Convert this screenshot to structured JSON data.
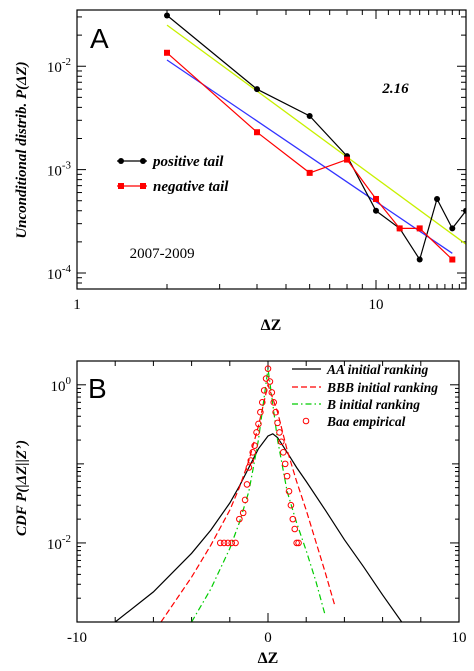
{
  "chart_data": [
    {
      "panel_label": "A",
      "type": "line",
      "xscale": "log",
      "yscale": "log",
      "xlim": [
        1,
        20
      ],
      "ylim": [
        7e-05,
        0.035
      ],
      "xlabel": "ΔZ",
      "ylabel": "Unconditional distrib. P(ΔZ)",
      "x_ticks": [
        {
          "value": 1,
          "label": "1"
        },
        {
          "value": 10,
          "label": "10"
        }
      ],
      "y_ticks": [
        {
          "value": 0.0001,
          "base": "10",
          "exp": "-4"
        },
        {
          "value": 0.001,
          "base": "10",
          "exp": "-3"
        },
        {
          "value": 0.01,
          "base": "10",
          "exp": "-2"
        }
      ],
      "legend_position": "center-left",
      "annotations": [
        {
          "text": "2.16",
          "x": 10.5,
          "y": 0.0055,
          "italic": true,
          "bold": true
        },
        {
          "text": "2007-2009",
          "x": 1.5,
          "y": 0.00014,
          "italic": false,
          "bold": false
        }
      ],
      "series": [
        {
          "name": "positive tail",
          "color": "#000000",
          "marker": "circle",
          "x": [
            2,
            4,
            6,
            8,
            10,
            12,
            14,
            16,
            18,
            20
          ],
          "y": [
            0.031,
            0.006,
            0.0033,
            0.00135,
            0.0004,
            0.00027,
            0.000135,
            0.00052,
            0.00027,
            0.0004
          ]
        },
        {
          "name": "negative tail",
          "color": "#ff0000",
          "marker": "square",
          "x": [
            2,
            4,
            6,
            8,
            10,
            12,
            14,
            18
          ],
          "y": [
            0.0135,
            0.0023,
            0.00093,
            0.00125,
            0.00052,
            0.00027,
            0.00027,
            0.000135
          ]
        }
      ],
      "fit_lines": [
        {
          "color": "#3333ff",
          "x": [
            2,
            18
          ],
          "y": [
            0.0115,
            0.000155
          ]
        },
        {
          "color": "#c8f000",
          "x": [
            2,
            20
          ],
          "y": [
            0.025,
            0.00019
          ]
        }
      ]
    },
    {
      "panel_label": "B",
      "type": "line",
      "yscale": "log",
      "xlim": [
        -10,
        10
      ],
      "ylim": [
        0.001,
        2
      ],
      "xlabel": "ΔZ",
      "ylabel": "CDF P(|ΔZ||Z’)",
      "x_ticks": [
        {
          "value": -10,
          "label": "-10"
        },
        {
          "value": 0,
          "label": "0"
        },
        {
          "value": 10,
          "label": "10"
        }
      ],
      "y_ticks": [
        {
          "value": 0.01,
          "base": "10",
          "exp": "-2"
        },
        {
          "value": 1,
          "base": "10",
          "exp": "0"
        }
      ],
      "legend_position": "top-right",
      "series": [
        {
          "name": "AA initial ranking",
          "color": "#000000",
          "style": "solid",
          "x": [
            -8,
            -6,
            -4,
            -3,
            -2,
            -1.5,
            -1,
            -0.5,
            0,
            0.25,
            0.5,
            1,
            1.5,
            2,
            3,
            4,
            5,
            6,
            7
          ],
          "y": [
            0.001,
            0.0024,
            0.0074,
            0.0145,
            0.032,
            0.052,
            0.09,
            0.155,
            0.225,
            0.24,
            0.215,
            0.14,
            0.09,
            0.06,
            0.026,
            0.011,
            0.005,
            0.0022,
            0.001
          ]
        },
        {
          "name": "BBB initial ranking",
          "color": "#ff0000",
          "style": "dashed",
          "x": [
            -5.6,
            -4,
            -3,
            -2,
            -1.5,
            -1,
            -0.5,
            0,
            0.5,
            1,
            1.5,
            2,
            3,
            3.5
          ],
          "y": [
            0.001,
            0.0037,
            0.0093,
            0.026,
            0.05,
            0.11,
            0.3,
            1,
            0.45,
            0.15,
            0.06,
            0.026,
            0.0042,
            0.0016
          ]
        },
        {
          "name": "B initial ranking",
          "color": "#00cc00",
          "style": "dashdot",
          "x": [
            -4,
            -3,
            -2,
            -1.5,
            -1,
            -0.5,
            0,
            0.5,
            1,
            1.5,
            2,
            2.5,
            3
          ],
          "y": [
            0.001,
            0.0026,
            0.0085,
            0.018,
            0.045,
            0.2,
            1.6,
            0.2,
            0.045,
            0.018,
            0.008,
            0.0033,
            0.0012
          ]
        },
        {
          "name": "Baa empirical",
          "color": "#ff0000",
          "marker": "open-circle",
          "x": [
            -2.5,
            -2.3,
            -2.1,
            -1.9,
            -1.7,
            -1.5,
            -1.3,
            -1.2,
            -1.1,
            -1,
            -0.9,
            -0.8,
            -0.7,
            -0.6,
            -0.5,
            -0.4,
            -0.3,
            -0.2,
            -0.1,
            0,
            0.1,
            0.2,
            0.3,
            0.4,
            0.5,
            0.6,
            0.7,
            0.8,
            0.9,
            1,
            1.1,
            1.2,
            1.3,
            1.4,
            1.5,
            1.6
          ],
          "y": [
            0.01,
            0.01,
            0.01,
            0.01,
            0.01,
            0.02,
            0.024,
            0.035,
            0.055,
            0.09,
            0.11,
            0.14,
            0.17,
            0.25,
            0.32,
            0.45,
            0.6,
            0.85,
            1.2,
            1.6,
            1.1,
            0.8,
            0.6,
            0.45,
            0.33,
            0.25,
            0.19,
            0.14,
            0.1,
            0.07,
            0.045,
            0.03,
            0.02,
            0.015,
            0.01,
            0.01
          ]
        }
      ]
    }
  ]
}
